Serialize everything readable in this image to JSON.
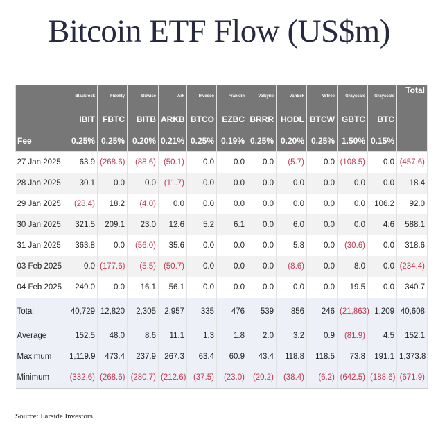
{
  "title": "Bitcoin ETF Flow (US$m)",
  "issuers": [
    "Blackrock",
    "Fidelity",
    "Bitwise",
    "Ark",
    "Invesco",
    "Franklin",
    "Valkyrie",
    "VanEck",
    "WTree",
    "Grayscale",
    "Grayscale"
  ],
  "total_header": "Total",
  "tickers": [
    "IBIT",
    "FBTC",
    "BITB",
    "ARKB",
    "BTCO",
    "EZBC",
    "BRRR",
    "HODL",
    "BTCW",
    "GBTC",
    "BTC"
  ],
  "fee_label": "Fee",
  "fees": [
    "0.25%",
    "0.25%",
    "0.20%",
    "0.21%",
    "0.25%",
    "0.19%",
    "0.25%",
    "0.20%",
    "0.25%",
    "1.50%",
    "0.15%"
  ],
  "rows": [
    {
      "date": "27 Jan 2025",
      "values": [
        "63.9",
        "(268.6)",
        "(88.6)",
        "(50.1)",
        "0.0",
        "0.0",
        "0.0",
        "(5.7)",
        "0.0",
        "(108.5)",
        "0.0",
        "(457.6)"
      ]
    },
    {
      "date": "28 Jan 2025",
      "values": [
        "30.1",
        "0.0",
        "0.0",
        "(11.7)",
        "0.0",
        "0.0",
        "0.0",
        "0.0",
        "0.0",
        "0.0",
        "0.0",
        "18.4"
      ]
    },
    {
      "date": "29 Jan 2025",
      "values": [
        "(28.4)",
        "18.2",
        "(4.0)",
        "0.0",
        "0.0",
        "0.0",
        "0.0",
        "0.0",
        "0.0",
        "0.0",
        "106.2",
        "92.0"
      ]
    },
    {
      "date": "30 Jan 2025",
      "values": [
        "321.5",
        "209.1",
        "23.0",
        "12.6",
        "5.2",
        "6.1",
        "0.0",
        "6.0",
        "0.0",
        "0.0",
        "4.6",
        "588.1"
      ]
    },
    {
      "date": "31 Jan 2025",
      "values": [
        "363.8",
        "0.0",
        "(56.0)",
        "35.6",
        "0.0",
        "0.0",
        "0.0",
        "5.8",
        "0.0",
        "(30.6)",
        "0.0",
        "318.6"
      ]
    },
    {
      "date": "03 Feb 2025",
      "values": [
        "0.0",
        "(177.6)",
        "(5.5)",
        "(50.7)",
        "0.0",
        "0.0",
        "0.0",
        "(8.6)",
        "0.0",
        "8.0",
        "0.0",
        "(234.4)"
      ]
    },
    {
      "date": "04 Feb 2025",
      "values": [
        "249.0",
        "0.0",
        "16.1",
        "56.1",
        "0.0",
        "0.0",
        "0.0",
        "0.0",
        "0.0",
        "19.5",
        "0.0",
        "340.7"
      ]
    }
  ],
  "summary": [
    {
      "label": "Total",
      "values": [
        "40,729",
        "12,820",
        "2,305",
        "2,957",
        "335",
        "476",
        "539",
        "856",
        "246",
        "(21,863)",
        "1,209",
        "40,608"
      ]
    },
    {
      "label": "Average",
      "values": [
        "152.5",
        "48.0",
        "8.6",
        "11.1",
        "1.3",
        "1.8",
        "2.0",
        "3.2",
        "0.9",
        "(81.9)",
        "4.5",
        "152.1"
      ]
    },
    {
      "label": "Maximum",
      "values": [
        "1,119.9",
        "473.4",
        "237.9",
        "267.3",
        "63.4",
        "60.9",
        "43.4",
        "118.8",
        "118.5",
        "73.8",
        "191.1",
        "1,373.8"
      ]
    },
    {
      "label": "Minimum",
      "values": [
        "(332.6)",
        "(268.6)",
        "(280.7)",
        "(212.6)",
        "(37.5)",
        "(23.0)",
        "(20.2)",
        "(38.4)",
        "(6.2)",
        "(642.5)",
        "(188.6)",
        "(671.9)"
      ]
    }
  ],
  "colors": {
    "header_bg": "#777777",
    "negative": "#c0394f",
    "summary_bg": "#eef0f8",
    "title": "#262940"
  },
  "source": "Source: Farside Investors"
}
